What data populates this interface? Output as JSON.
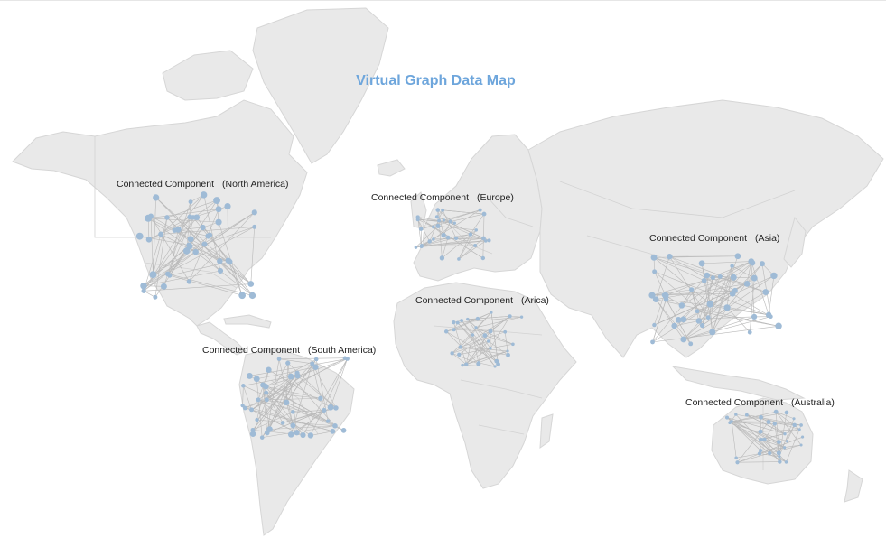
{
  "title": "Virtual Graph Data Map",
  "colors": {
    "land": "#e9e9e9",
    "border": "#d2d2d2",
    "title": "#6ea6dc",
    "node": "#9fbbd6",
    "edge": "#b9b9b9"
  },
  "components": [
    {
      "id": "north-america",
      "name": "Connected Component",
      "region": "(North America)"
    },
    {
      "id": "europe",
      "name": "Connected Component",
      "region": "(Europe)"
    },
    {
      "id": "asia",
      "name": "Connected Component",
      "region": "(Asia)"
    },
    {
      "id": "africa",
      "name": "Connected Component",
      "region": "(Arica)"
    },
    {
      "id": "south-america",
      "name": "Connected Component",
      "region": "(South America)"
    },
    {
      "id": "australia",
      "name": "Connected Component",
      "region": "(Australia)"
    }
  ]
}
